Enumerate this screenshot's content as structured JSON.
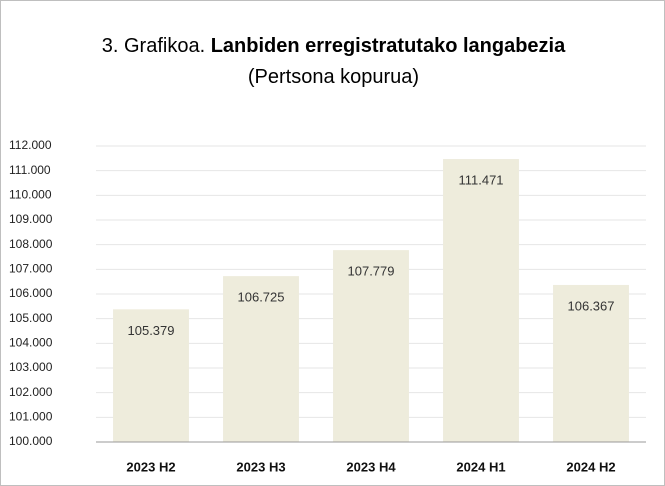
{
  "chart_data": {
    "type": "bar",
    "title": {
      "prefix": "3. Grafikoa.",
      "main": "Lanbiden erregistratutako langabezia",
      "suffix": "(Pertsona kopurua)"
    },
    "categories": [
      "2023 H2",
      "2023 H3",
      "2023 H4",
      "2024 H1",
      "2024 H2"
    ],
    "values": [
      105379,
      106725,
      107779,
      111471,
      106367
    ],
    "value_labels": [
      "105.379",
      "106.725",
      "107.779",
      "111.471",
      "106.367"
    ],
    "color": "#eeecdc",
    "ylim": [
      100000,
      112000
    ],
    "yticks": [
      {
        "value": 100000,
        "label": "100.000"
      },
      {
        "value": 101000,
        "label": "101.000"
      },
      {
        "value": 102000,
        "label": "102.000"
      },
      {
        "value": 103000,
        "label": "103.000"
      },
      {
        "value": 104000,
        "label": "104.000"
      },
      {
        "value": 105000,
        "label": "105.000"
      },
      {
        "value": 106000,
        "label": "106.000"
      },
      {
        "value": 107000,
        "label": "107.000"
      },
      {
        "value": 108000,
        "label": "108.000"
      },
      {
        "value": 109000,
        "label": "109.000"
      },
      {
        "value": 110000,
        "label": "110.000"
      },
      {
        "value": 111000,
        "label": "111.000"
      },
      {
        "value": 112000,
        "label": "112.000"
      }
    ],
    "grid": true
  }
}
